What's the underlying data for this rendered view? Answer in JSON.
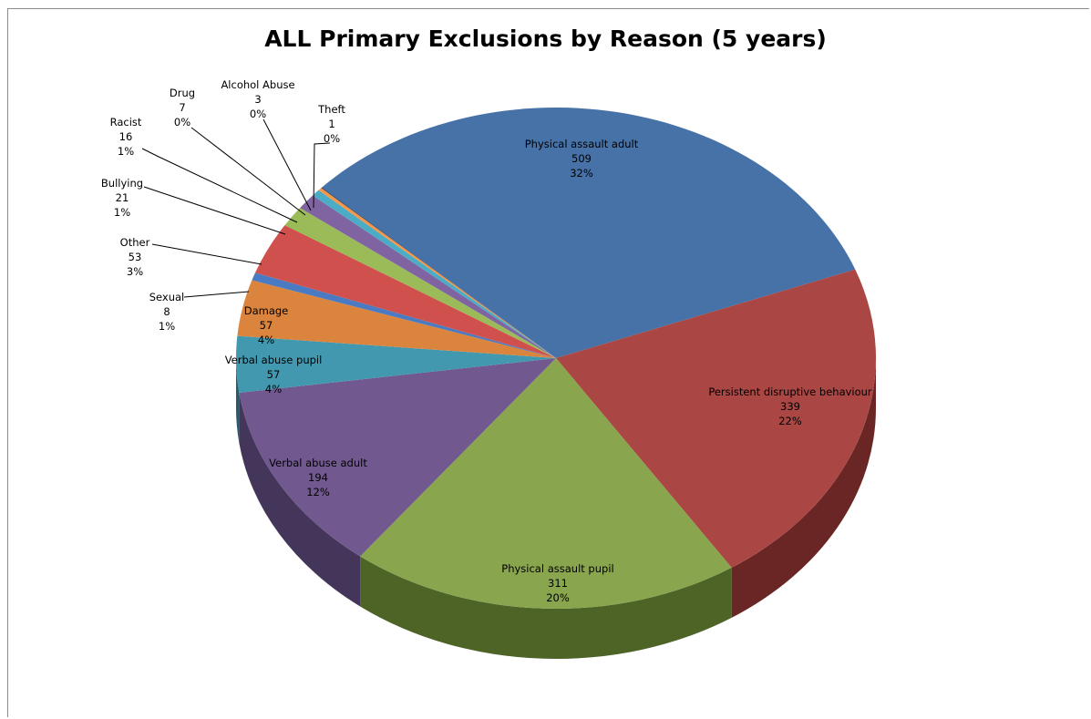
{
  "chart_data": {
    "type": "pie",
    "title": "ALL Primary Exclusions by Reason (5 years)",
    "slices": [
      {
        "label": "Physical assault adult",
        "value": 509,
        "percent": "32%",
        "color": "#4672a8",
        "side": "#2c4a70"
      },
      {
        "label": "Persistent disruptive behaviour",
        "value": 339,
        "percent": "22%",
        "color": "#aa4643",
        "side": "#6a2624"
      },
      {
        "label": "Physical assault pupil",
        "value": 311,
        "percent": "20%",
        "color": "#89a54e",
        "side": "#4e6326"
      },
      {
        "label": "Verbal abuse adult",
        "value": 194,
        "percent": "12%",
        "color": "#71588f",
        "side": "#44355a"
      },
      {
        "label": "Verbal abuse pupil",
        "value": 57,
        "percent": "4%",
        "color": "#4198af",
        "side": "#245c6c"
      },
      {
        "label": "Damage",
        "value": 57,
        "percent": "4%",
        "color": "#db843d",
        "side": "#8c4f1e"
      },
      {
        "label": "Sexual",
        "value": 8,
        "percent": "1%",
        "color": "#4a7ac2",
        "side": "#2c4a78"
      },
      {
        "label": "Other",
        "value": 53,
        "percent": "3%",
        "color": "#d0504d",
        "side": "#7e2e2c"
      },
      {
        "label": "Bullying",
        "value": 21,
        "percent": "1%",
        "color": "#9bbb59",
        "side": "#5c7230"
      },
      {
        "label": "Racist",
        "value": 16,
        "percent": "1%",
        "color": "#8064a2",
        "side": "#4b3a63"
      },
      {
        "label": "Drug",
        "value": 7,
        "percent": "0%",
        "color": "#4bacc6",
        "side": "#2b6a7c"
      },
      {
        "label": "Alcohol Abuse",
        "value": 3,
        "percent": "0%",
        "color": "#f79646",
        "side": "#9c5b24"
      },
      {
        "label": "Theft",
        "value": 1,
        "percent": "0%",
        "color": "#2c4d75",
        "side": "#1b2f48"
      }
    ],
    "start_angle_deg": -137,
    "direction": "clockwise",
    "style": "3d-pie",
    "legend": "none",
    "data_labels": "category, value, percentage"
  }
}
